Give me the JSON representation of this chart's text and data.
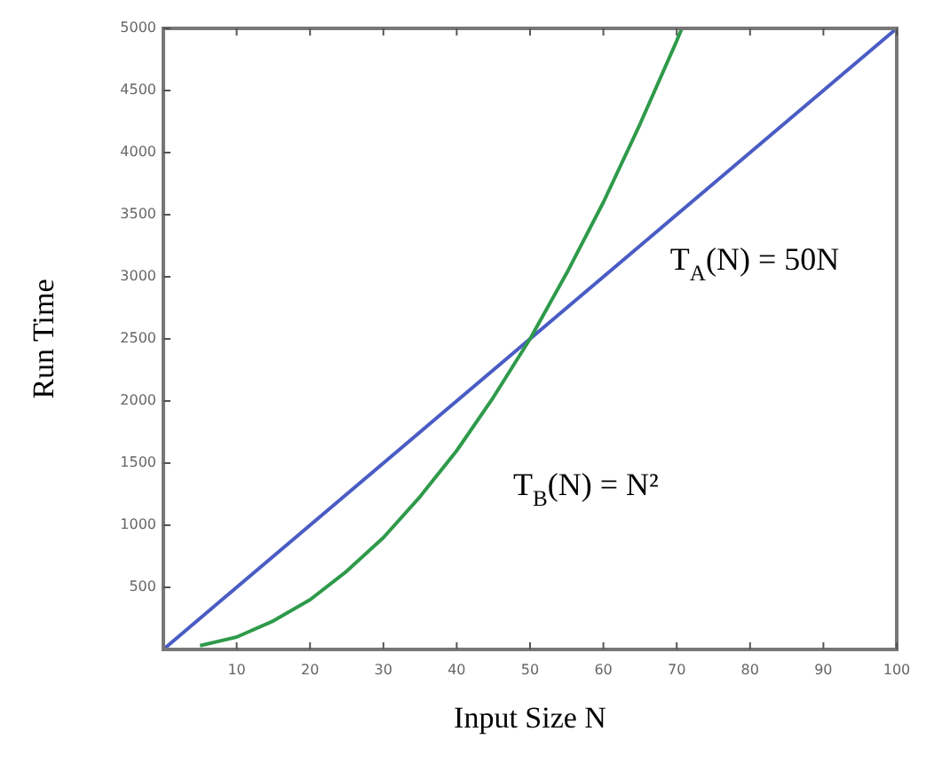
{
  "chart_data": {
    "type": "line",
    "xlabel": "Input Size N",
    "ylabel": "Run Time",
    "xlim": [
      0,
      100
    ],
    "xticks": [
      10,
      20,
      30,
      40,
      50,
      60,
      70,
      80,
      90,
      100
    ],
    "ylim": [
      0,
      5000
    ],
    "yticks": [
      500,
      1000,
      1500,
      2000,
      2500,
      3000,
      3500,
      4000,
      4500,
      5000
    ],
    "grid": false,
    "marker": "none",
    "line_style": "solid",
    "series": [
      {
        "color": "#4a5cc4",
        "x": [
          0,
          100
        ],
        "values": [
          0,
          5000
        ]
      },
      {
        "color": "#2e9a4a",
        "x": [
          5,
          10,
          15,
          20,
          25,
          30,
          35,
          40,
          45,
          50,
          55,
          60,
          65,
          70,
          70.7
        ],
        "values": [
          30,
          100,
          230,
          400,
          630,
          900,
          1230,
          1600,
          2030,
          2500,
          3030,
          3600,
          4230,
          4900,
          5000
        ]
      }
    ],
    "annotations": [
      "T$_{A}$(N) = 50N",
      "T$_{B}$(N) = N²"
    ]
  }
}
